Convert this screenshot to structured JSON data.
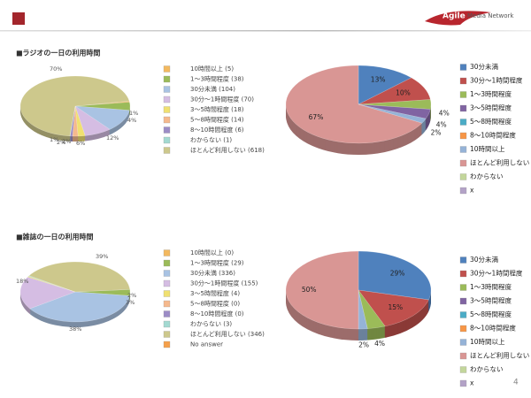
{
  "header": {
    "logo_main": "Agile",
    "logo_sub": "Media Network"
  },
  "page_number": "4",
  "sections": [
    {
      "title": "■ラジオの一日の利用時間"
    },
    {
      "title": "■雑誌の一日の利用時間"
    }
  ],
  "chart_data": [
    {
      "type": "pie",
      "categories": [
        "10時間以上 (5)",
        "1～3時間程度 (38)",
        "30分未満 (104)",
        "30分～1時間程度 (70)",
        "3～5時間程度 (18)",
        "5～8時間程度 (14)",
        "8～10時間程度 (6)",
        "わからない (1)",
        "ほとんど利用しない (618)"
      ],
      "values": [
        5,
        38,
        104,
        70,
        18,
        14,
        6,
        1,
        618
      ],
      "colors": [
        "#f3b95f",
        "#9bbb59",
        "#a9c3e3",
        "#d5bde3",
        "#f0e070",
        "#f5b98d",
        "#9c8cc6",
        "#a3d9d1",
        "#cdc88c"
      ],
      "annotations": [
        "70%",
        "1%",
        "4%",
        "12%",
        "6%",
        "2%",
        "1%",
        "2%"
      ]
    },
    {
      "type": "pie",
      "categories": [
        "30分未満",
        "30分～1時間程度",
        "1～3時間程度",
        "3～5時間程度",
        "5～8時間程度",
        "8～10時間程度",
        "10時間以上",
        "ほとんど利用しない",
        "わからない",
        "x"
      ],
      "values": [
        13,
        10,
        4,
        4,
        0,
        0,
        2,
        67,
        0,
        0
      ],
      "value_labels": [
        "13%",
        "10%",
        "4%",
        "4%",
        null,
        null,
        "2%",
        "67%",
        null,
        null
      ],
      "colors": [
        "#4f81bd",
        "#c0504d",
        "#9bbb59",
        "#8064a2",
        "#4bacc6",
        "#f79646",
        "#95b3d7",
        "#d99694",
        "#c3d69b",
        "#b3a2c7"
      ]
    },
    {
      "type": "pie",
      "categories": [
        "10時間以上 (0)",
        "1～3時間程度 (29)",
        "30分未満 (336)",
        "30分～1時間程度 (155)",
        "3～5時間程度 (4)",
        "5～8時間程度 (0)",
        "8～10時間程度 (0)",
        "わからない (3)",
        "ほとんど利用しない (346)",
        "No answer"
      ],
      "values": [
        0,
        29,
        336,
        155,
        4,
        0,
        0,
        3,
        346,
        null
      ],
      "colors": [
        "#f3b95f",
        "#9bbb59",
        "#a9c3e3",
        "#d5bde3",
        "#f0e070",
        "#f5b98d",
        "#9c8cc6",
        "#a3d9d1",
        "#cdc88c",
        "#f5a04a"
      ],
      "annotations": [
        "39%",
        "18%",
        "38%",
        "2%",
        "3%"
      ]
    },
    {
      "type": "pie",
      "categories": [
        "30分未満",
        "30分～1時間程度",
        "1～3時間程度",
        "3～5時間程度",
        "5～8時間程度",
        "8～10時間程度",
        "10時間以上",
        "ほとんど利用しない",
        "わからない",
        "x"
      ],
      "values": [
        29,
        15,
        4,
        0,
        0,
        0,
        2,
        50,
        0,
        0
      ],
      "value_labels": [
        "29%",
        "15%",
        "4%",
        null,
        null,
        null,
        "2%",
        "50%",
        null,
        null
      ],
      "colors": [
        "#4f81bd",
        "#c0504d",
        "#9bbb59",
        "#8064a2",
        "#4bacc6",
        "#f79646",
        "#95b3d7",
        "#d99694",
        "#c3d69b",
        "#b3a2c7"
      ]
    }
  ]
}
